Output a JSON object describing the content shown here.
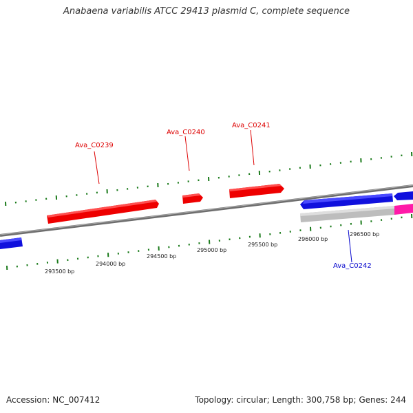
{
  "title": "Anabaena variabilis ATCC 29413 plasmid C, complete sequence",
  "footer": {
    "accession": "Accession: NC_007412",
    "summary": "Topology: circular; Length: 300,758 bp; Genes: 244"
  },
  "colors": {
    "forward_gene": "#ff0000",
    "reverse_gene": "#0000ff",
    "other_gene": "#c0c0c0",
    "pink_gene": "#ff1aa8",
    "backbone": "#808080",
    "tick": "#1a7a1a"
  },
  "tick_labels": [
    "293500 bp",
    "294000 bp",
    "294500 bp",
    "295000 bp",
    "295500 bp",
    "296000 bp",
    "296500 bp"
  ],
  "gene_labels": [
    {
      "id": "C0239",
      "text": "Ava_C0239",
      "color": "#dd0000"
    },
    {
      "id": "C0240",
      "text": "Ava_C0240",
      "color": "#dd0000"
    },
    {
      "id": "C0241",
      "text": "Ava_C0241",
      "color": "#dd0000"
    },
    {
      "id": "C0242",
      "text": "Ava_C0242",
      "color": "#0000cc"
    }
  ]
}
